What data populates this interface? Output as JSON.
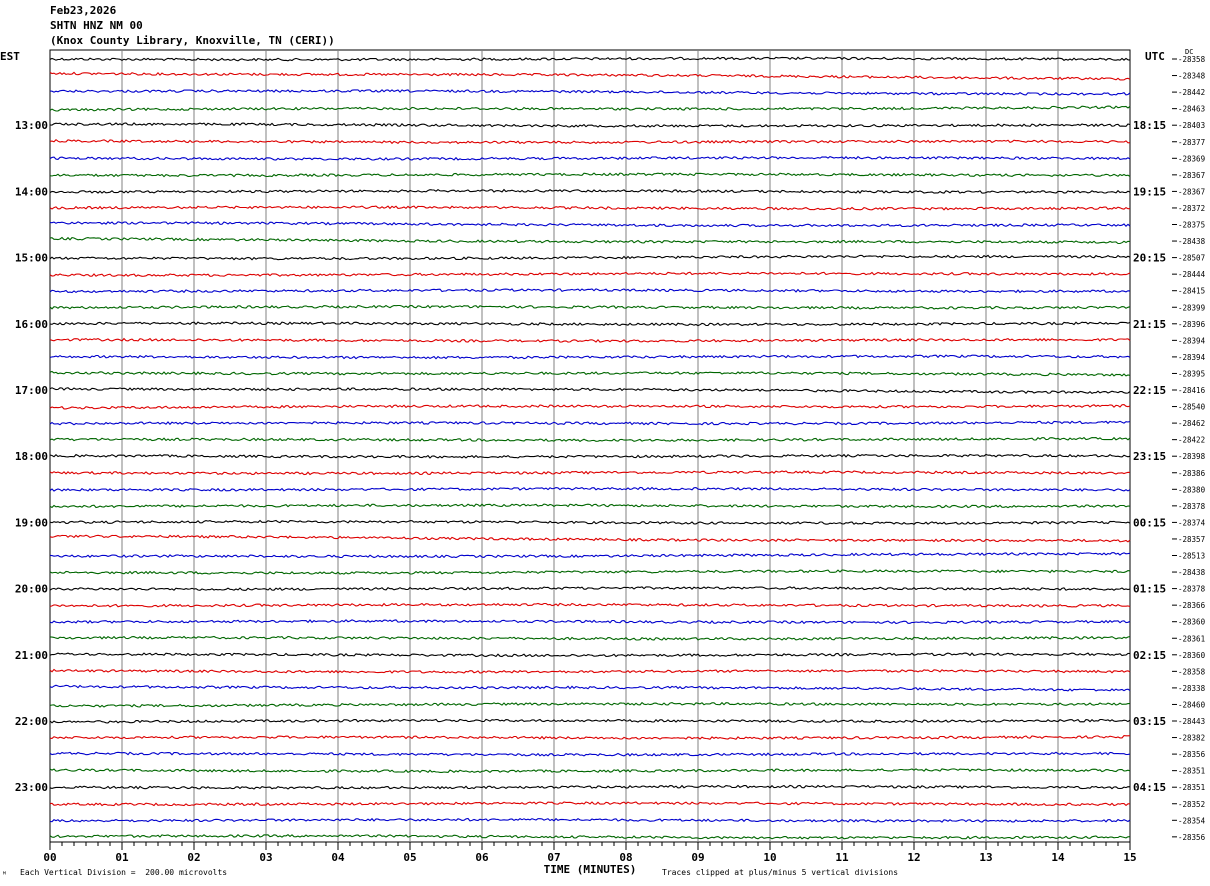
{
  "header": {
    "date": "Feb23,2026",
    "station": "SHTN HNZ NM 00",
    "location": "(Knox County Library, Knoxville, TN (CERI))"
  },
  "left_timezone": "EST",
  "right_timezone": "UTC",
  "dc_label": "DC",
  "footer": {
    "scale_note": "Each Vertical Division =  200.00 microvolts",
    "clip_note": "Traces clipped at plus/minus 5 vertical divisions",
    "corner_mark": "ᴹ"
  },
  "colors": {
    "black": "#000000",
    "red": "#dd0000",
    "blue": "#0000cc",
    "green": "#006600",
    "grid": "#808080"
  },
  "chart_data": {
    "type": "line",
    "title": "SHTN HNZ NM 00",
    "xlabel": "TIME (MINUTES)",
    "x_ticks": [
      "00",
      "01",
      "02",
      "03",
      "04",
      "05",
      "06",
      "07",
      "08",
      "09",
      "10",
      "11",
      "12",
      "13",
      "14",
      "15"
    ],
    "xlim": [
      0,
      15
    ],
    "left_hour_labels": [
      "13:00",
      "14:00",
      "15:00",
      "16:00",
      "17:00",
      "18:00",
      "19:00",
      "20:00",
      "21:00",
      "22:00",
      "23:00"
    ],
    "right_hour_labels": [
      "18:15",
      "19:15",
      "20:15",
      "21:15",
      "22:15",
      "23:15",
      "00:15",
      "01:15",
      "02:15",
      "03:15",
      "04:15"
    ],
    "trace_color_cycle": [
      "black",
      "red",
      "blue",
      "green"
    ],
    "dc_offsets": [
      "-28358",
      "-28348",
      "-28442",
      "-28463",
      "-28403",
      "-28377",
      "-28369",
      "-28367",
      "-28367",
      "-28372",
      "-28375",
      "-28438",
      "-28507",
      "-28444",
      "-28415",
      "-28399",
      "-28396",
      "-28394",
      "-28394",
      "-28395",
      "-28416",
      "-28540",
      "-28462",
      "-28422",
      "-28398",
      "-28386",
      "-28380",
      "-28378",
      "-28374",
      "-28357",
      "-28513",
      "-28438",
      "-28378",
      "-28366",
      "-28360",
      "-28361",
      "-28360",
      "-28358",
      "-28338",
      "-28460",
      "-28443",
      "-28382",
      "-28356",
      "-28351",
      "-28351",
      "-28352",
      "-28354",
      "-28356"
    ],
    "drift": [
      0.0,
      0.9,
      0.5,
      -0.4,
      0.2,
      0.1,
      0.0,
      0.0,
      0.0,
      0.1,
      0.4,
      0.6,
      -0.3,
      -0.2,
      0.0,
      0.0,
      0.0,
      0.0,
      0.0,
      0.3,
      0.6,
      -0.3,
      -0.2,
      -0.1,
      0.0,
      0.0,
      0.0,
      0.0,
      0.1,
      0.8,
      -0.4,
      -0.2,
      0.0,
      0.0,
      0.0,
      0.0,
      0.0,
      0.1,
      0.6,
      -0.3,
      -0.2,
      -0.1,
      0.0,
      0.0,
      0.0,
      0.0,
      0.0,
      0.2
    ]
  }
}
